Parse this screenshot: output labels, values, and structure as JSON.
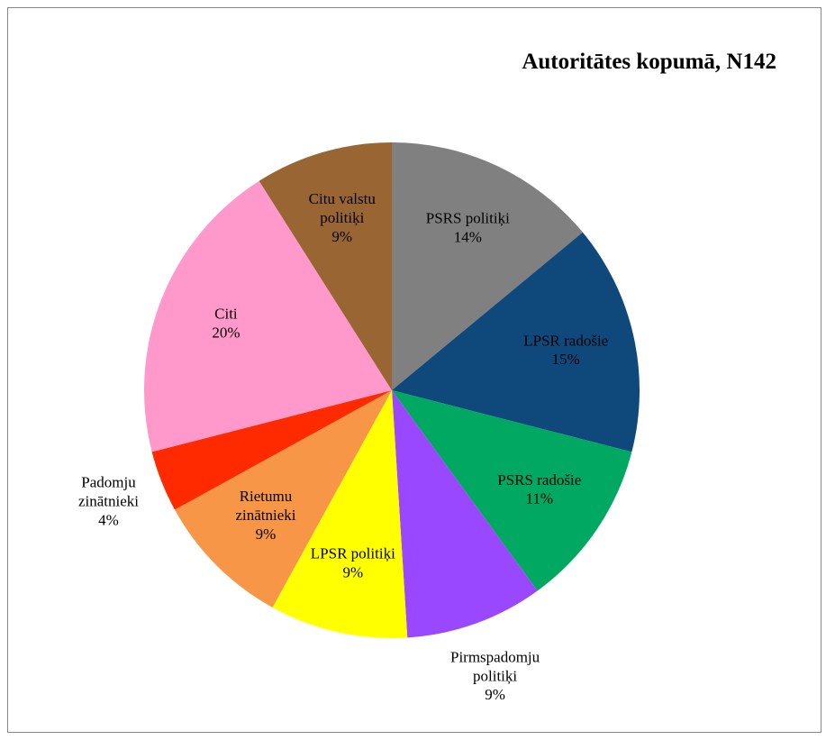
{
  "chart_data": {
    "type": "pie",
    "title": "Autoritātes kopumā, N142",
    "categories": [
      "PSRS politiķi",
      "LPSR radošie",
      "PSRS radošie",
      "Pirmspadomju politiķi",
      "LPSR politiķi",
      "Rietumu zinātnieki",
      "Padomju zinātnieki",
      "Citi",
      "Citu valstu politiķi"
    ],
    "values": [
      14,
      15,
      11,
      9,
      9,
      9,
      4,
      20,
      9
    ],
    "value_labels": [
      "14%",
      "15%",
      "11%",
      "9%",
      "9%",
      "9%",
      "4%",
      "20%",
      "9%"
    ],
    "colors": [
      "#808080",
      "#0f497c",
      "#00a862",
      "#9a48ff",
      "#ffff00",
      "#f79646",
      "#ff2a00",
      "#ff99cc",
      "#996633"
    ]
  }
}
